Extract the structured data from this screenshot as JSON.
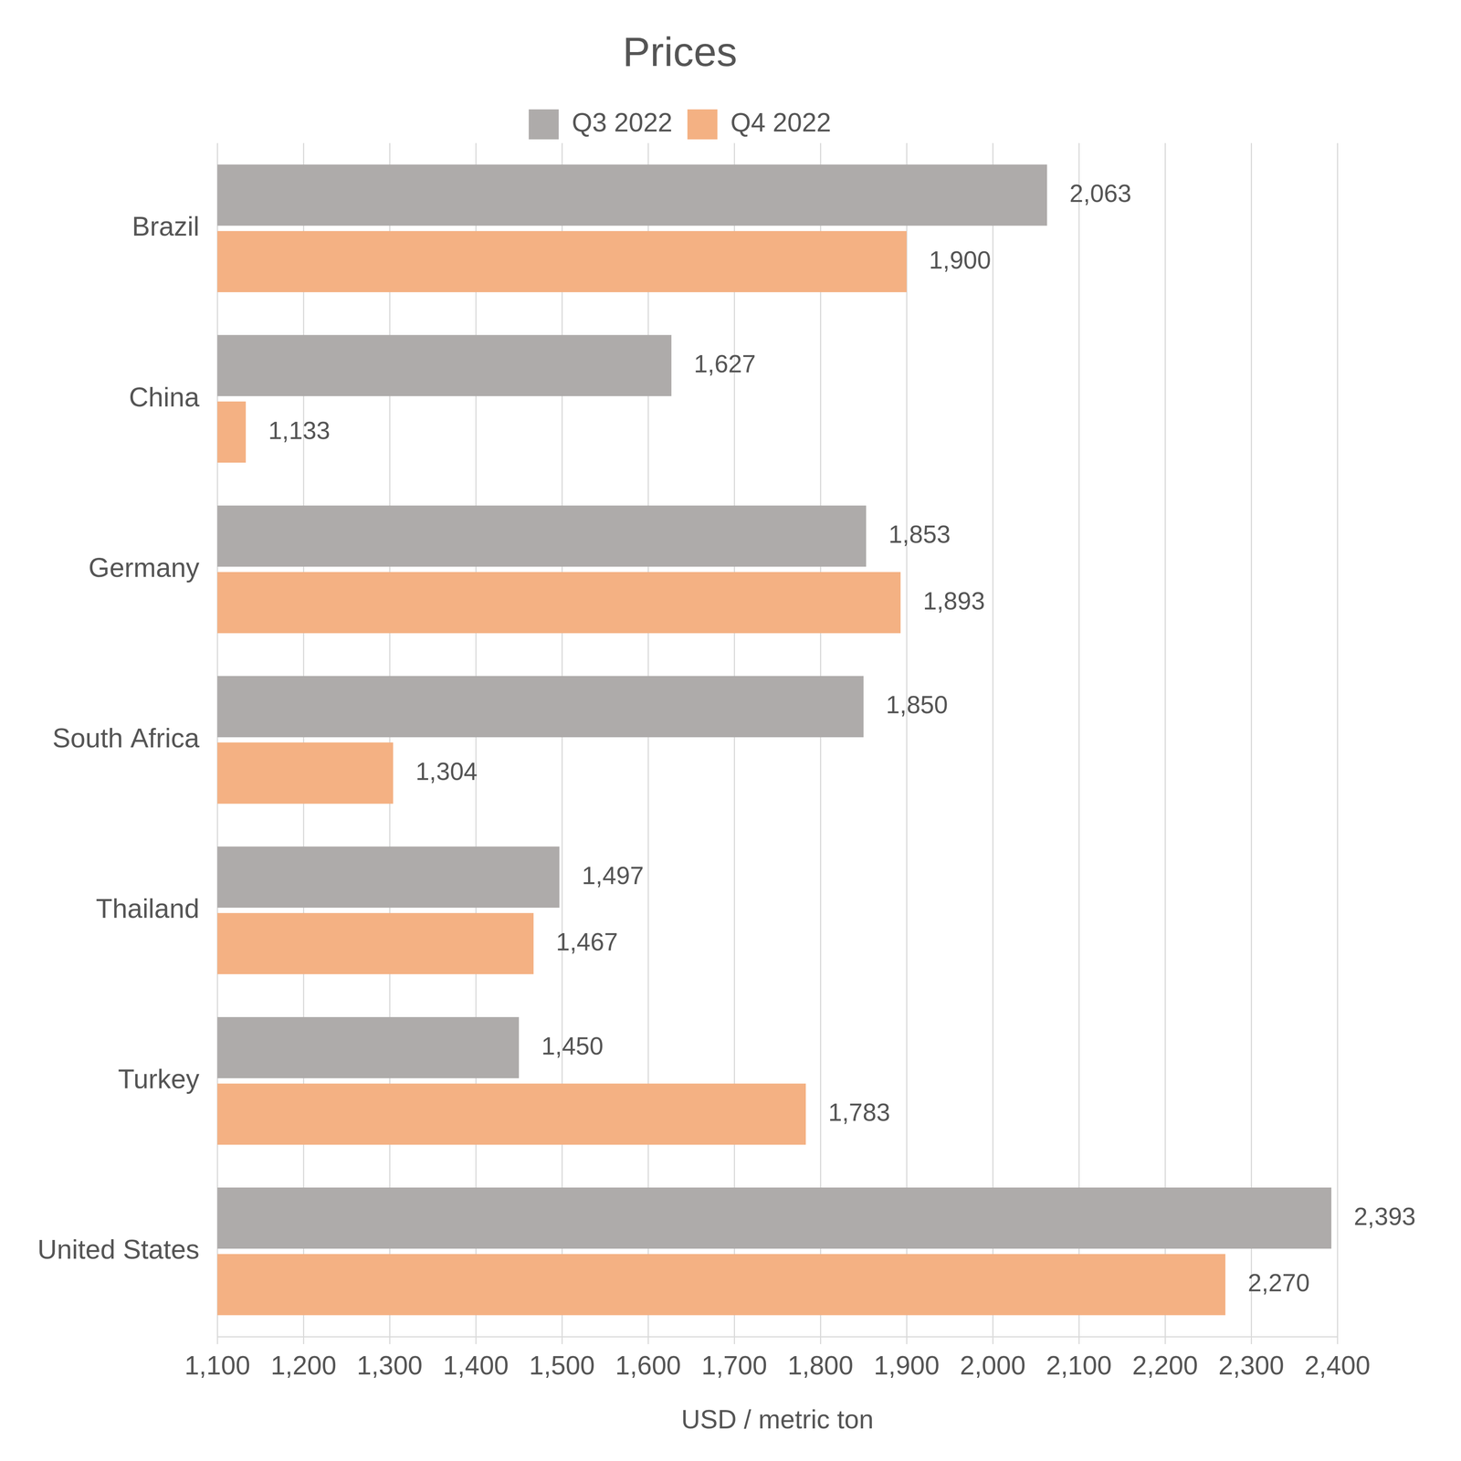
{
  "chart_data": {
    "type": "bar",
    "title": "Prices",
    "orientation": "horizontal",
    "xlabel": "USD / metric ton",
    "categories": [
      "Brazil",
      "China",
      "Germany",
      "South Africa",
      "Thailand",
      "Turkey",
      "United States"
    ],
    "series": [
      {
        "name": "Q3 2022",
        "color": "#aeabaa",
        "values": [
          2063,
          1627,
          1853,
          1850,
          1497,
          1450,
          2393
        ],
        "value_labels": [
          "2,063",
          "1,627",
          "1,853",
          "1,850",
          "1,497",
          "1,450",
          "2,393"
        ]
      },
      {
        "name": "Q4 2022",
        "color": "#f4b183",
        "values": [
          1900,
          1133,
          1893,
          1304,
          1467,
          1783,
          2270
        ],
        "value_labels": [
          "1,900",
          "1,133",
          "1,893",
          "1,304",
          "1,467",
          "1,783",
          "2,270"
        ]
      }
    ],
    "xlim": [
      1100,
      2400
    ],
    "xticks": [
      {
        "value": 1100,
        "label": "1,100"
      },
      {
        "value": 1200,
        "label": "1,200"
      },
      {
        "value": 1300,
        "label": "1,300"
      },
      {
        "value": 1400,
        "label": "1,400"
      },
      {
        "value": 1500,
        "label": "1,500"
      },
      {
        "value": 1600,
        "label": "1,600"
      },
      {
        "value": 1700,
        "label": "1,700"
      },
      {
        "value": 1800,
        "label": "1,800"
      },
      {
        "value": 1900,
        "label": "1,900"
      },
      {
        "value": 2000,
        "label": "2,000"
      },
      {
        "value": 2100,
        "label": "2,100"
      },
      {
        "value": 2200,
        "label": "2,200"
      },
      {
        "value": 2300,
        "label": "2,300"
      },
      {
        "value": 2400,
        "label": "2,400"
      }
    ],
    "grid": true,
    "legend": "top",
    "data_labels": true
  }
}
